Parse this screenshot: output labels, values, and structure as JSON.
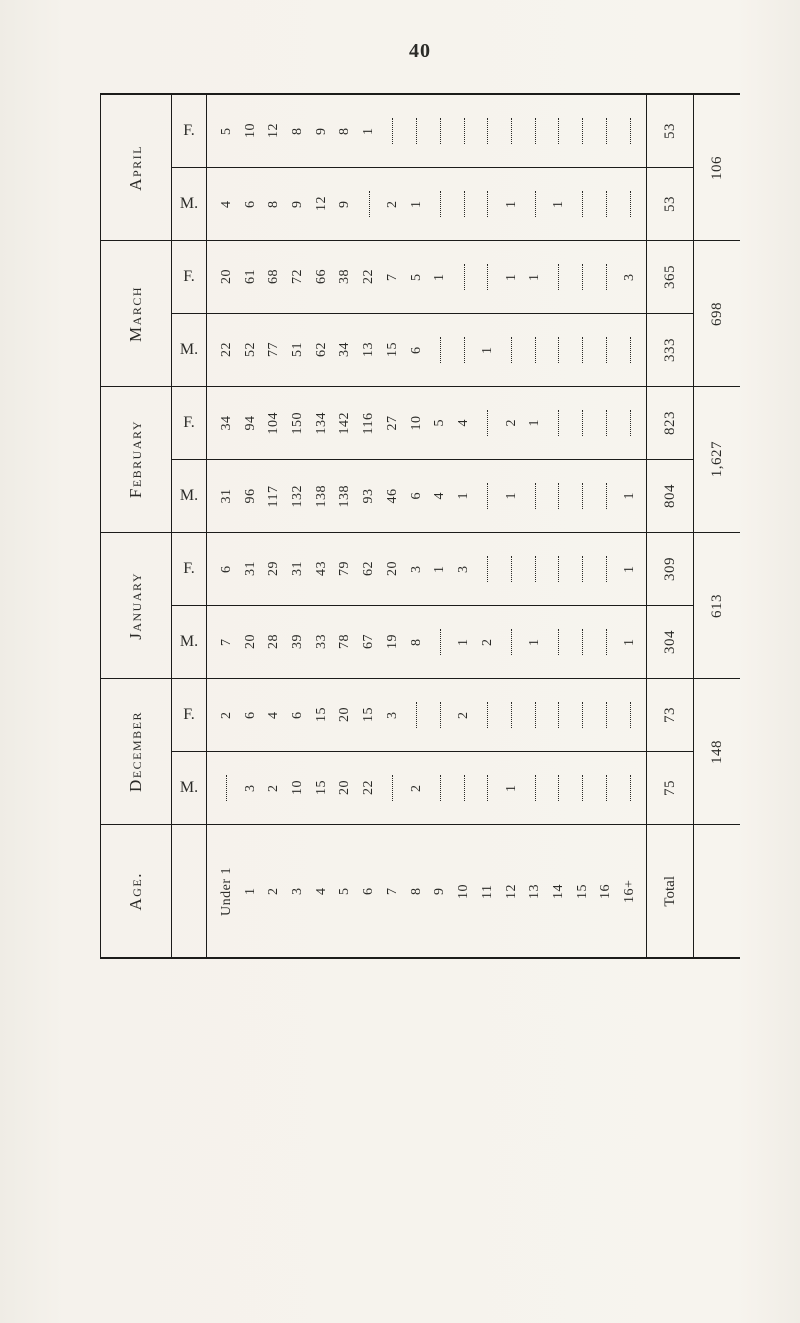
{
  "page_number": "40",
  "age_label": "Age.",
  "total_label": "Total",
  "age_row": [
    "Under 1",
    "1",
    "2",
    "3",
    "4",
    "5",
    "6",
    "7",
    "8",
    "9",
    "10",
    "11",
    "12",
    "13",
    "14",
    "15",
    "16",
    "16+"
  ],
  "months": [
    {
      "name": "April",
      "rows": [
        {
          "sex": "F.",
          "values": [
            "5",
            "10",
            "12",
            "8",
            "9",
            "8",
            "1",
            "",
            "",
            "",
            "",
            "",
            "",
            "",
            "",
            "",
            "",
            ""
          ],
          "subtotal": "53"
        },
        {
          "sex": "M.",
          "values": [
            "4",
            "6",
            "8",
            "9",
            "12",
            "9",
            "",
            "2",
            "1",
            "",
            "",
            "",
            "1",
            "",
            "1",
            "",
            "",
            ""
          ],
          "subtotal": "53"
        }
      ],
      "total": "106"
    },
    {
      "name": "March",
      "rows": [
        {
          "sex": "F.",
          "values": [
            "20",
            "61",
            "68",
            "72",
            "66",
            "38",
            "22",
            "7",
            "5",
            "1",
            "",
            "",
            "1",
            "1",
            "",
            "",
            "",
            "3"
          ],
          "subtotal": "365"
        },
        {
          "sex": "M.",
          "values": [
            "22",
            "52",
            "77",
            "51",
            "62",
            "34",
            "13",
            "15",
            "6",
            "",
            "",
            "1",
            "",
            "",
            "",
            "",
            "",
            ""
          ],
          "subtotal": "333"
        }
      ],
      "total": "698"
    },
    {
      "name": "February",
      "rows": [
        {
          "sex": "F.",
          "values": [
            "34",
            "94",
            "104",
            "150",
            "134",
            "142",
            "116",
            "27",
            "10",
            "5",
            "4",
            "",
            "2",
            "1",
            "",
            "",
            "",
            ""
          ],
          "subtotal": "823"
        },
        {
          "sex": "M.",
          "values": [
            "31",
            "96",
            "117",
            "132",
            "138",
            "138",
            "93",
            "46",
            "6",
            "4",
            "1",
            "",
            "1",
            "",
            "",
            "",
            "",
            "1"
          ],
          "subtotal": "804"
        }
      ],
      "total": "1,627"
    },
    {
      "name": "January",
      "rows": [
        {
          "sex": "F.",
          "values": [
            "6",
            "31",
            "29",
            "31",
            "43",
            "79",
            "62",
            "20",
            "3",
            "1",
            "3",
            "",
            "",
            "",
            "",
            "",
            "",
            "1"
          ],
          "subtotal": "309"
        },
        {
          "sex": "M.",
          "values": [
            "7",
            "20",
            "28",
            "39",
            "33",
            "78",
            "67",
            "19",
            "8",
            "",
            "1",
            "2",
            "",
            "1",
            "",
            "",
            "",
            "1"
          ],
          "subtotal": "304"
        }
      ],
      "total": "613"
    },
    {
      "name": "December",
      "rows": [
        {
          "sex": "F.",
          "values": [
            "2",
            "6",
            "4",
            "6",
            "15",
            "20",
            "15",
            "3",
            "",
            "",
            "2",
            "",
            "",
            "",
            "",
            "",
            "",
            ""
          ],
          "subtotal": "73"
        },
        {
          "sex": "M.",
          "values": [
            "",
            "3",
            "2",
            "10",
            "15",
            "20",
            "22",
            "",
            "2",
            "",
            "",
            "",
            "1",
            "",
            "",
            "",
            "",
            ""
          ],
          "subtotal": "75"
        }
      ],
      "total": "148"
    }
  ]
}
